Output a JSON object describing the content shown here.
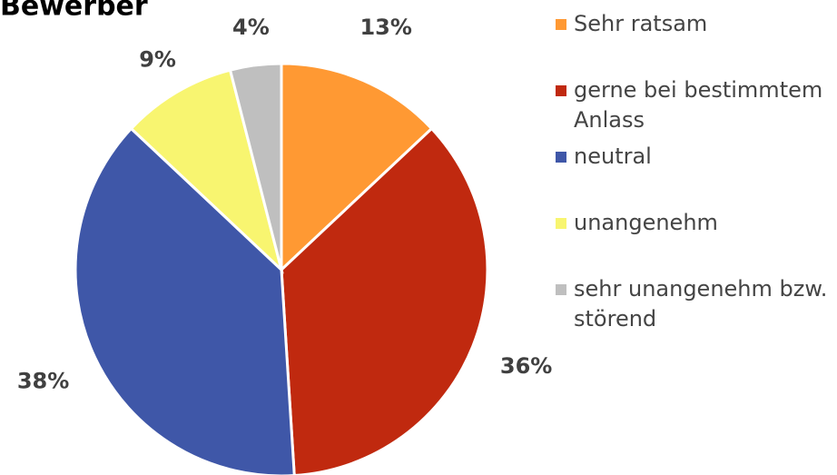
{
  "chart_data": {
    "type": "pie",
    "title": "Bewerber",
    "categories": [
      "Sehr ratsam",
      "gerne bei bestimmtem Anlass",
      "neutral",
      "unangenehm",
      "sehr unangenehm bzw. störend"
    ],
    "values": [
      13,
      36,
      38,
      9,
      4
    ],
    "value_labels": [
      "13%",
      "36%",
      "38%",
      "9%",
      "4%"
    ],
    "colors": [
      "#ff9933",
      "#c0290f",
      "#3f57a8",
      "#f8f570",
      "#bfbfbf"
    ],
    "legend": "right"
  }
}
